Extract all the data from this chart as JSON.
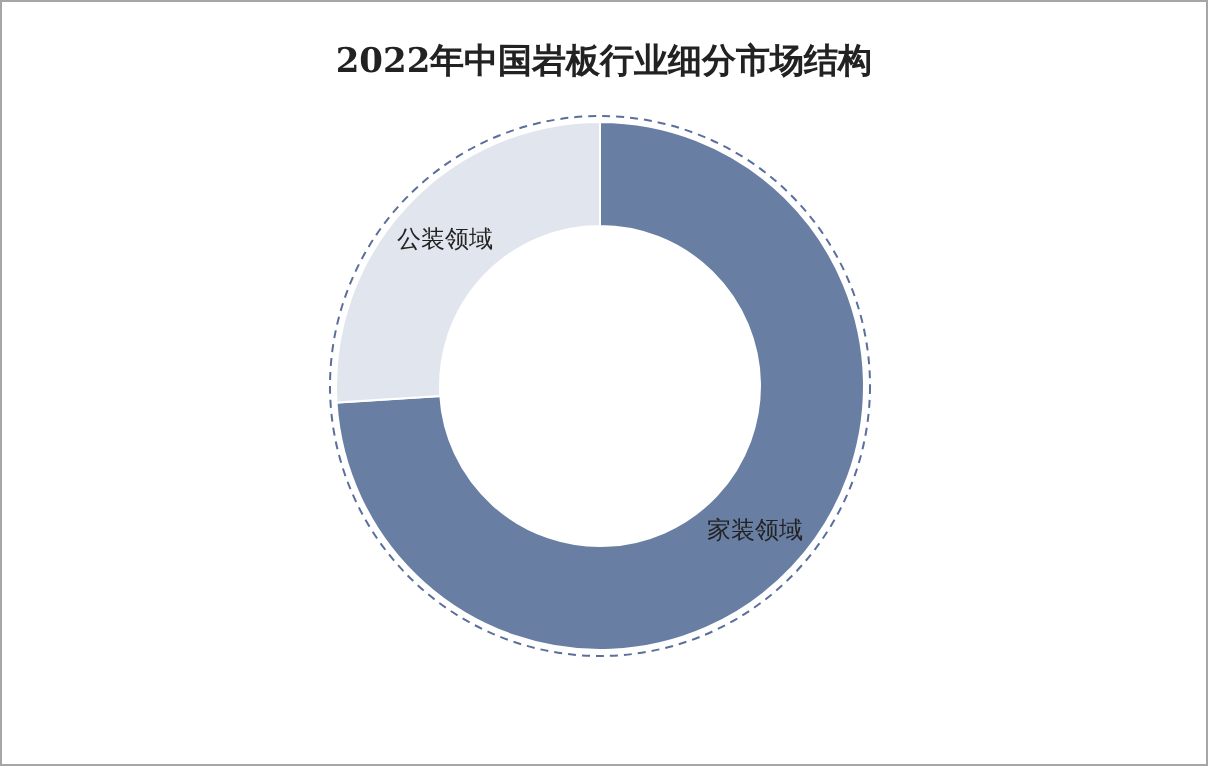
{
  "chart_data": {
    "type": "donut",
    "title": "2022年中国岩板行业细分市场结构",
    "categories": [
      "家装领域",
      "公装领域"
    ],
    "values": [
      74,
      26
    ],
    "colors": [
      "#687ea3",
      "#e1e5ee"
    ],
    "legend": false
  }
}
